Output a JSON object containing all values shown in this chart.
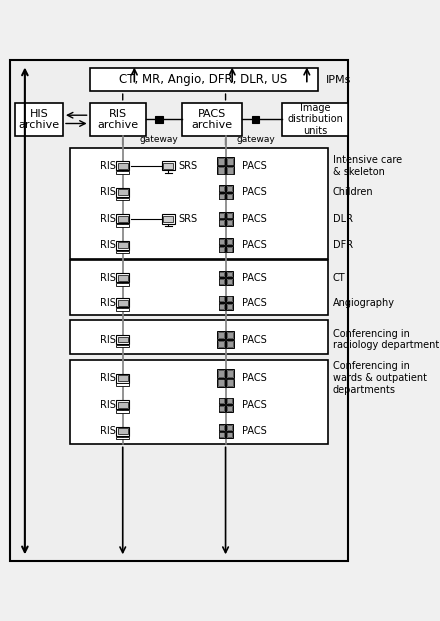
{
  "bg_color": "#f0f0f0",
  "figure_bg": "#d0d0d0",
  "box_color": "#ffffff",
  "box_edge": "#000000",
  "text_color": "#000000",
  "title": "CT, MR, Angio, DFR, DLR, US",
  "ipm_label": "IPMs",
  "his_label": "HIS\narchive",
  "ris_archive_label": "RIS\narchive",
  "pacs_archive_label": "PACS\narchive",
  "image_dist_label": "Image\ndistribution\nunits",
  "gateway_label": "gateway",
  "sections": [
    {
      "rows": [
        {
          "ris": "RIS",
          "pacs": "PACS",
          "label": "Intensive care\n& skeleton",
          "srs": "SRS",
          "srs_on": true
        },
        {
          "ris": "RIS",
          "pacs": "PACS",
          "label": "Children",
          "srs": null
        },
        {
          "ris": "RIS",
          "pacs": "PACS",
          "label": "DLR",
          "srs": "SRS",
          "srs_on": true
        },
        {
          "ris": "RIS",
          "pacs": "PACS",
          "label": "DFR",
          "srs": null
        }
      ]
    },
    {
      "rows": [
        {
          "ris": "RIS",
          "pacs": "PACS",
          "label": "CT",
          "srs": null
        },
        {
          "ris": "RIS",
          "pacs": "PACS",
          "label": "Angiography",
          "srs": null
        }
      ]
    },
    {
      "rows": [
        {
          "ris": "RIS",
          "pacs": "PACS",
          "label": "Conferencing in\nradiology department",
          "srs": null
        }
      ]
    },
    {
      "rows": [
        {
          "ris": "RIS",
          "pacs": "PACS",
          "label": "Conferencing in\nwards & outpatient\ndepartments",
          "srs": null
        },
        {
          "ris": "RIS",
          "pacs": "PACS",
          "label": null,
          "srs": null
        },
        {
          "ris": "RIS",
          "pacs": "PACS",
          "label": null,
          "srs": null
        }
      ]
    }
  ]
}
